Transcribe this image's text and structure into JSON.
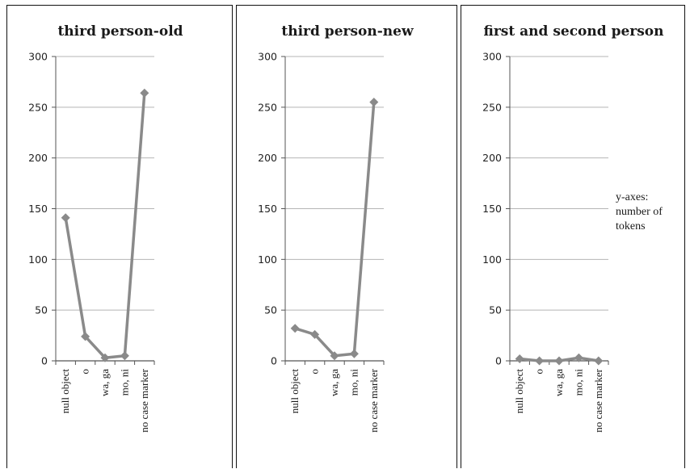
{
  "note": "y-axes: number of tokens",
  "colors": {
    "series": "#8a8a8a",
    "grid": "#b5b5b5",
    "axis": "#555555"
  },
  "chart_data": [
    {
      "type": "line",
      "title": "third person-old",
      "categories": [
        "null object",
        "o",
        "wa, ga",
        "mo, ni",
        "no case marker"
      ],
      "values": [
        141,
        24,
        3,
        5,
        264
      ],
      "ylim": [
        0,
        300
      ],
      "yticks": [
        0,
        50,
        100,
        150,
        200,
        250,
        300
      ],
      "grid": true
    },
    {
      "type": "line",
      "title": "third person-new",
      "categories": [
        "null object",
        "o",
        "wa, ga",
        "mo, ni",
        "no case marker"
      ],
      "values": [
        32,
        26,
        5,
        7,
        255
      ],
      "ylim": [
        0,
        300
      ],
      "yticks": [
        0,
        50,
        100,
        150,
        200,
        250,
        300
      ],
      "grid": true
    },
    {
      "type": "line",
      "title": "first and second person",
      "categories": [
        "null object",
        "o",
        "wa, ga",
        "mo, ni",
        "no case marker"
      ],
      "values": [
        2,
        0,
        0,
        3,
        0
      ],
      "ylim": [
        0,
        300
      ],
      "yticks": [
        0,
        50,
        100,
        150,
        200,
        250,
        300
      ],
      "grid": true
    }
  ]
}
